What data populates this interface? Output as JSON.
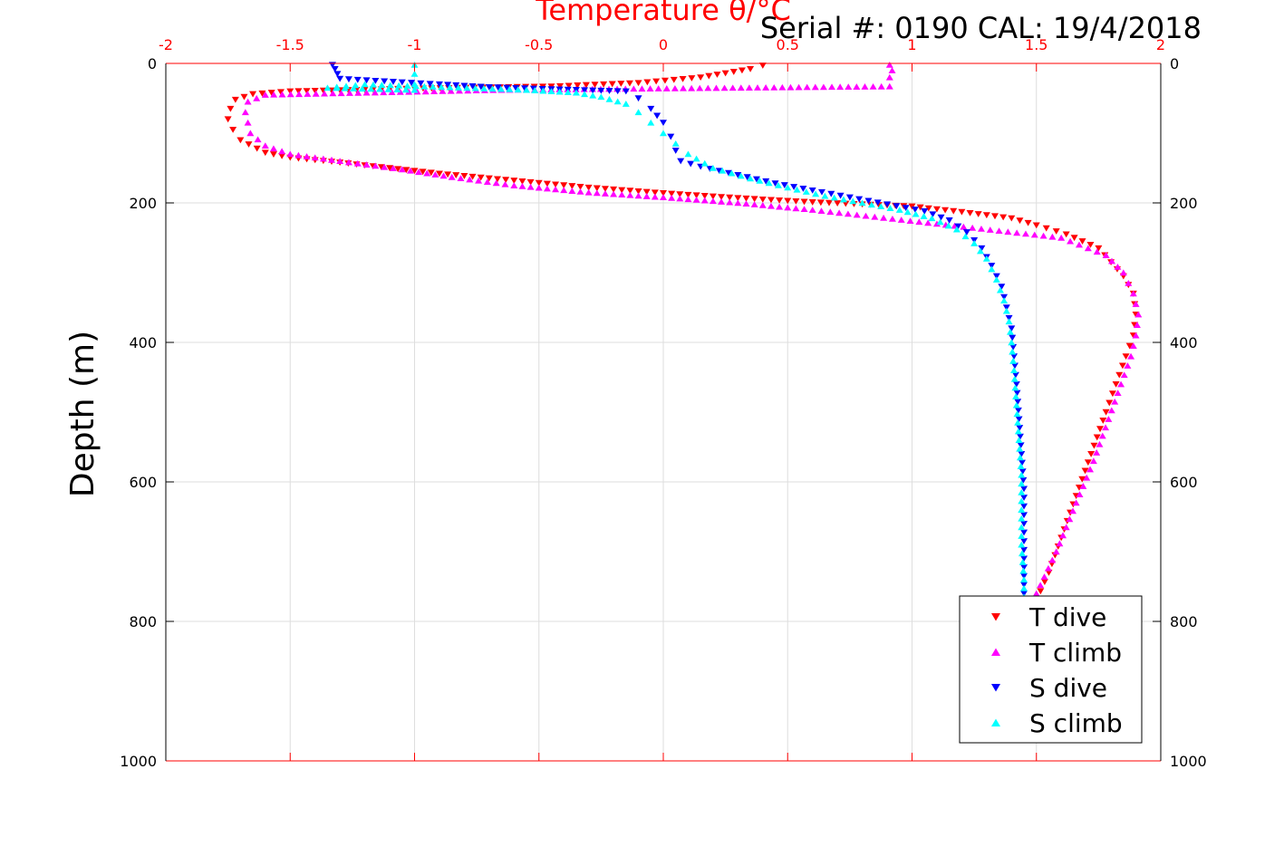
{
  "chart_data": {
    "type": "scatter",
    "title": "Temperature θ/°C",
    "annotation": "Serial #: 0190  CAL: 19/4/2018",
    "xlabel": "Temperature θ/°C",
    "ylabel": "Depth (m)",
    "xlim": [
      -2,
      2
    ],
    "ylim": [
      0,
      1000
    ],
    "y_reversed": true,
    "x_axis_position": "top",
    "x_axis_color": "#ff0000",
    "xticks": [
      "-2",
      "-1.5",
      "-1",
      "-0.5",
      "0",
      "0.5",
      "1",
      "1.5",
      "2"
    ],
    "yticks": [
      "0",
      "200",
      "400",
      "600",
      "800",
      "1000"
    ],
    "grid": true,
    "legend_position": "bottom-right",
    "series": [
      {
        "name": "T dive",
        "marker": "triangle-down",
        "color": "#ff0000",
        "points": [
          [
            0.4,
            3
          ],
          [
            0.35,
            8
          ],
          [
            0.15,
            20
          ],
          [
            -0.1,
            28
          ],
          [
            -0.45,
            33
          ],
          [
            -1.0,
            36
          ],
          [
            -1.5,
            40
          ],
          [
            -1.65,
            44
          ],
          [
            -1.72,
            52
          ],
          [
            -1.74,
            65
          ],
          [
            -1.75,
            80
          ],
          [
            -1.73,
            95
          ],
          [
            -1.7,
            110
          ],
          [
            -1.6,
            128
          ],
          [
            -1.5,
            135
          ],
          [
            -1.3,
            142
          ],
          [
            -1.1,
            150
          ],
          [
            -0.9,
            158
          ],
          [
            -0.6,
            168
          ],
          [
            -0.3,
            178
          ],
          [
            0.0,
            186
          ],
          [
            0.3,
            193
          ],
          [
            0.6,
            199
          ],
          [
            1.0,
            205
          ],
          [
            1.2,
            213
          ],
          [
            1.4,
            222
          ],
          [
            1.5,
            232
          ],
          [
            1.62,
            245
          ],
          [
            1.75,
            265
          ],
          [
            1.8,
            285
          ],
          [
            1.85,
            305
          ],
          [
            1.89,
            330
          ],
          [
            1.9,
            360
          ],
          [
            1.89,
            390
          ],
          [
            1.86,
            420
          ],
          [
            1.82,
            460
          ],
          [
            1.78,
            500
          ],
          [
            1.72,
            560
          ],
          [
            1.66,
            620
          ],
          [
            1.6,
            680
          ],
          [
            1.55,
            730
          ],
          [
            1.5,
            770
          ]
        ]
      },
      {
        "name": "T climb",
        "marker": "triangle-up",
        "color": "#ff00ff",
        "points": [
          [
            0.91,
            2
          ],
          [
            0.92,
            10
          ],
          [
            0.91,
            20
          ],
          [
            0.91,
            33
          ],
          [
            -0.65,
            38
          ],
          [
            -1.6,
            45
          ],
          [
            -1.67,
            55
          ],
          [
            -1.68,
            70
          ],
          [
            -1.67,
            85
          ],
          [
            -1.66,
            100
          ],
          [
            -1.6,
            118
          ],
          [
            -1.5,
            130
          ],
          [
            -1.3,
            140
          ],
          [
            -1.05,
            152
          ],
          [
            -0.85,
            163
          ],
          [
            -0.6,
            175
          ],
          [
            -0.3,
            185
          ],
          [
            0.0,
            192
          ],
          [
            0.3,
            200
          ],
          [
            0.6,
            210
          ],
          [
            0.85,
            220
          ],
          [
            1.1,
            230
          ],
          [
            1.35,
            240
          ],
          [
            1.6,
            250
          ],
          [
            1.78,
            275
          ],
          [
            1.85,
            300
          ],
          [
            1.89,
            330
          ],
          [
            1.91,
            360
          ],
          [
            1.9,
            390
          ],
          [
            1.88,
            420
          ],
          [
            1.84,
            460
          ],
          [
            1.79,
            510
          ],
          [
            1.73,
            570
          ],
          [
            1.66,
            630
          ],
          [
            1.58,
            700
          ],
          [
            1.5,
            760
          ]
        ]
      },
      {
        "name": "S dive",
        "marker": "triangle-down",
        "color": "#0000ff",
        "points": [
          [
            -1.33,
            2
          ],
          [
            -1.32,
            8
          ],
          [
            -1.31,
            15
          ],
          [
            -1.3,
            22
          ],
          [
            -1.05,
            27
          ],
          [
            -0.9,
            30
          ],
          [
            -0.7,
            34
          ],
          [
            -0.45,
            37
          ],
          [
            -0.15,
            40
          ],
          [
            -0.1,
            50
          ],
          [
            -0.05,
            65
          ],
          [
            0.0,
            85
          ],
          [
            0.03,
            105
          ],
          [
            0.05,
            125
          ],
          [
            0.07,
            140
          ],
          [
            0.15,
            148
          ],
          [
            0.3,
            160
          ],
          [
            0.45,
            172
          ],
          [
            0.6,
            182
          ],
          [
            0.75,
            192
          ],
          [
            0.9,
            202
          ],
          [
            1.05,
            212
          ],
          [
            1.15,
            225
          ],
          [
            1.22,
            242
          ],
          [
            1.28,
            265
          ],
          [
            1.32,
            290
          ],
          [
            1.36,
            320
          ],
          [
            1.38,
            350
          ],
          [
            1.4,
            380
          ],
          [
            1.41,
            420
          ],
          [
            1.42,
            460
          ],
          [
            1.43,
            510
          ],
          [
            1.44,
            560
          ],
          [
            1.45,
            610
          ],
          [
            1.45,
            660
          ],
          [
            1.45,
            710
          ],
          [
            1.45,
            760
          ]
        ]
      },
      {
        "name": "S climb",
        "marker": "triangle-up",
        "color": "#00ffff",
        "points": [
          [
            -1.0,
            2
          ],
          [
            -1.0,
            15
          ],
          [
            -1.0,
            30
          ],
          [
            -1.0,
            38
          ],
          [
            -1.35,
            35
          ],
          [
            -1.2,
            30
          ],
          [
            -0.55,
            38
          ],
          [
            -0.35,
            42
          ],
          [
            -0.25,
            48
          ],
          [
            -0.15,
            58
          ],
          [
            -0.1,
            70
          ],
          [
            -0.05,
            85
          ],
          [
            0.0,
            100
          ],
          [
            0.05,
            115
          ],
          [
            0.1,
            130
          ],
          [
            0.2,
            150
          ],
          [
            0.35,
            165
          ],
          [
            0.5,
            178
          ],
          [
            0.65,
            190
          ],
          [
            0.8,
            200
          ],
          [
            0.95,
            210
          ],
          [
            1.08,
            222
          ],
          [
            1.18,
            238
          ],
          [
            1.25,
            258
          ],
          [
            1.3,
            280
          ],
          [
            1.34,
            310
          ],
          [
            1.37,
            340
          ],
          [
            1.39,
            370
          ],
          [
            1.4,
            400
          ],
          [
            1.41,
            440
          ],
          [
            1.42,
            490
          ],
          [
            1.43,
            540
          ],
          [
            1.44,
            590
          ],
          [
            1.44,
            640
          ],
          [
            1.44,
            690
          ],
          [
            1.45,
            740
          ],
          [
            1.45,
            765
          ]
        ]
      }
    ]
  }
}
